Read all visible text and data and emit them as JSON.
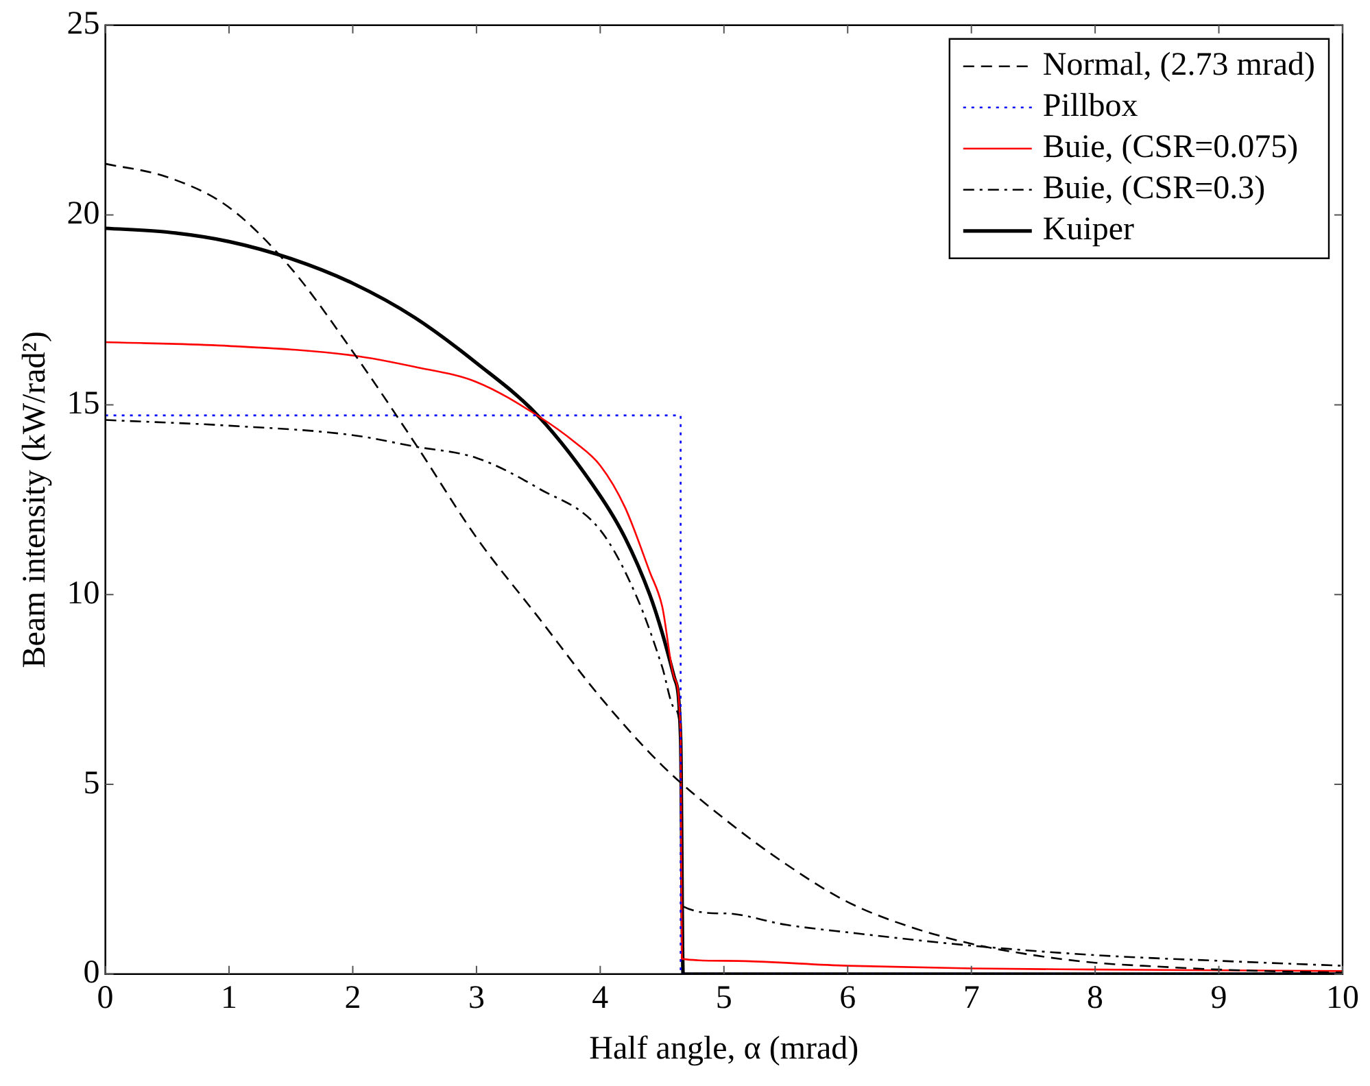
{
  "chart_data": {
    "type": "line",
    "xlabel": "Half angle, α (mrad)",
    "ylabel": "Beam intensity (kW/rad²)",
    "xlim": [
      0,
      10
    ],
    "ylim": [
      0,
      25
    ],
    "xticks": [
      0,
      1,
      2,
      3,
      4,
      5,
      6,
      7,
      8,
      9,
      10
    ],
    "yticks": [
      0,
      5,
      10,
      15,
      20,
      25
    ],
    "grid": false,
    "legend": "top right",
    "marker": "none",
    "series": [
      {
        "name": "Normal, (2.73 mrad)",
        "color": "#000000",
        "line_style": "dashed",
        "x": [
          0,
          0.5,
          1,
          1.5,
          2,
          2.5,
          3,
          3.5,
          4,
          4.5,
          5,
          5.5,
          6,
          6.5,
          7,
          7.5,
          8,
          8.5,
          9,
          9.5,
          10
        ],
        "values": [
          21.35,
          21.0,
          20.2,
          18.6,
          16.4,
          14.0,
          11.5,
          9.4,
          7.3,
          5.5,
          4.1,
          2.9,
          1.9,
          1.25,
          0.8,
          0.5,
          0.3,
          0.2,
          0.12,
          0.07,
          0.04
        ]
      },
      {
        "name": "Pillbox",
        "color": "#0000ff",
        "line_style": "dotted",
        "x": [
          0,
          4.65,
          4.65,
          10
        ],
        "values": [
          14.72,
          14.72,
          0,
          0
        ]
      },
      {
        "name": "Buie, (CSR=0.075)",
        "color": "#ff0000",
        "line_style": "solid",
        "x": [
          0,
          1,
          2,
          2.5,
          3,
          3.5,
          3.8,
          4,
          4.2,
          4.4,
          4.5,
          4.6,
          4.65,
          4.66,
          5,
          6,
          7,
          8,
          9,
          10
        ],
        "values": [
          16.65,
          16.55,
          16.3,
          16.0,
          15.6,
          14.7,
          14.0,
          13.4,
          12.3,
          10.6,
          9.7,
          7.8,
          6.3,
          0.4,
          0.35,
          0.22,
          0.15,
          0.12,
          0.1,
          0.08
        ]
      },
      {
        "name": "Buie, (CSR=0.3)",
        "color": "#000000",
        "line_style": "dashdot",
        "x": [
          0,
          1,
          2,
          2.5,
          3,
          3.5,
          4,
          4.3,
          4.5,
          4.6,
          4.65,
          4.66,
          5,
          5.5,
          6,
          7,
          8,
          9,
          10
        ],
        "values": [
          14.6,
          14.45,
          14.2,
          13.9,
          13.6,
          12.8,
          11.7,
          9.9,
          8.1,
          7.0,
          6.3,
          1.8,
          1.6,
          1.3,
          1.1,
          0.75,
          0.5,
          0.35,
          0.22
        ]
      },
      {
        "name": "Kuiper",
        "color": "#000000",
        "line_style": "solid",
        "x": [
          0,
          0.5,
          1,
          1.5,
          2,
          2.5,
          3,
          3.5,
          4,
          4.2,
          4.4,
          4.5,
          4.6,
          4.65,
          4.67,
          10
        ],
        "values": [
          19.65,
          19.55,
          19.3,
          18.85,
          18.2,
          17.3,
          16.1,
          14.7,
          12.6,
          11.5,
          10.0,
          9.0,
          7.8,
          6.2,
          0,
          0
        ]
      }
    ]
  }
}
